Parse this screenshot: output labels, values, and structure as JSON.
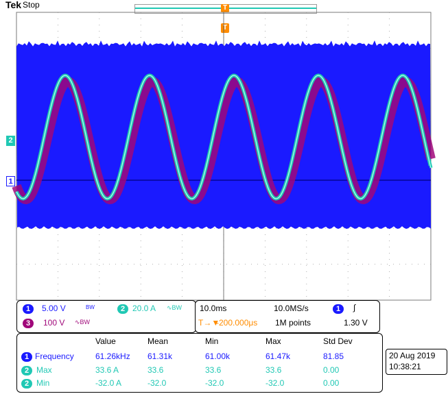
{
  "header": {
    "brand": "Tek",
    "state": "Stop",
    "trigger_marker": "T"
  },
  "markers": {
    "ch2": "2",
    "ch1": "1"
  },
  "colors": {
    "ch1": "#1a1aff",
    "ch2": "#20c8b4",
    "ch3": "#a0087a",
    "trigger": "#ff8c00",
    "grid": "#9a9a9a"
  },
  "channels": [
    {
      "num": "1",
      "scale": "5.00 V",
      "coupling": "BW",
      "color": "#1a1aff"
    },
    {
      "num": "2",
      "scale": "20.0 A",
      "coupling": "∿BW",
      "color": "#20c8b4"
    },
    {
      "num": "3",
      "scale": "100 V",
      "coupling": "∿BW",
      "color": "#a0087a"
    }
  ],
  "timebase": {
    "scale": "10.0ms",
    "sample_rate": "10.0MS/s",
    "delay_prefix": "T→▼",
    "delay": "-200.000μs",
    "record": "1M points",
    "trig_src": "1",
    "trig_slope": "∫",
    "trig_level": "1.30 V"
  },
  "measurements": {
    "headers": [
      "Value",
      "Mean",
      "Min",
      "Max",
      "Std Dev"
    ],
    "rows": [
      {
        "ch": "1",
        "name": "Frequency",
        "values": [
          "61.26kHz",
          "61.31k",
          "61.00k",
          "61.47k",
          "81.85"
        ],
        "color": "#1a1aff"
      },
      {
        "ch": "2",
        "name": "Max",
        "values": [
          "33.6 A",
          "33.6",
          "33.6",
          "33.6",
          "0.00"
        ],
        "color": "#20c8b4"
      },
      {
        "ch": "2",
        "name": "Min",
        "values": [
          "-32.0 A",
          "-32.0",
          "-32.0",
          "-32.0",
          "0.00"
        ],
        "color": "#20c8b4"
      }
    ]
  },
  "datetime": {
    "date": "20 Aug 2019",
    "time": "10:38:21"
  }
}
